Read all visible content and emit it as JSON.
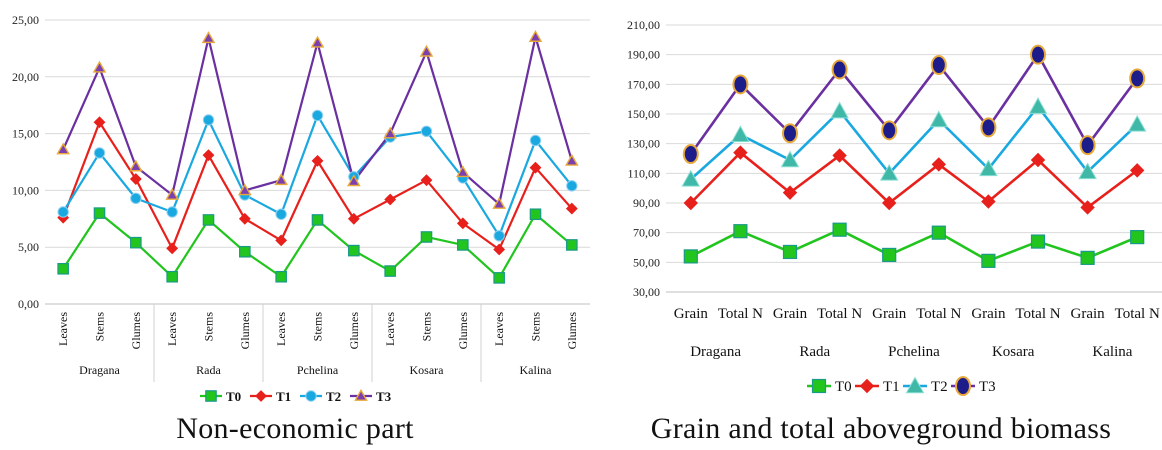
{
  "chart_data": [
    {
      "type": "line",
      "caption": "Non-economic part",
      "groups": [
        "Dragana",
        "Rada",
        "Pchelina",
        "Kosara",
        "Kalina"
      ],
      "categories": [
        "Leaves",
        "Stems",
        "Glumes",
        "Leaves",
        "Stems",
        "Glumes",
        "Leaves",
        "Stems",
        "Glumes",
        "Leaves",
        "Stems",
        "Glumes",
        "Leaves",
        "Stems",
        "Glumes"
      ],
      "ylim": [
        0,
        25
      ],
      "yticks": [
        "0,00",
        "5,00",
        "10,00",
        "15,00",
        "20,00",
        "25,00"
      ],
      "grid": true,
      "legend_position": "bottom",
      "series": [
        {
          "name": "T0",
          "color": "#22c41e",
          "marker": "square",
          "values": [
            3.1,
            8.0,
            5.4,
            2.4,
            7.4,
            4.6,
            2.4,
            7.4,
            4.7,
            2.9,
            5.9,
            5.2,
            2.3,
            7.9,
            5.2
          ]
        },
        {
          "name": "T1",
          "color": "#e8201c",
          "marker": "diamond",
          "values": [
            7.6,
            16.0,
            11.0,
            4.9,
            13.1,
            7.5,
            5.6,
            12.6,
            7.5,
            9.2,
            10.9,
            7.1,
            4.8,
            12.0,
            8.4
          ]
        },
        {
          "name": "T2",
          "color": "#1aa8e0",
          "marker": "circle",
          "values": [
            8.1,
            13.3,
            9.3,
            8.1,
            16.2,
            9.6,
            7.9,
            16.6,
            11.2,
            14.7,
            15.2,
            11.1,
            6.0,
            14.4,
            10.4
          ]
        },
        {
          "name": "T3",
          "color": "#6a2fa0",
          "marker": "triangle",
          "values": [
            13.6,
            20.8,
            12.1,
            9.6,
            23.4,
            10.0,
            10.9,
            23.0,
            10.8,
            15.0,
            22.2,
            11.6,
            8.8,
            23.5,
            12.6
          ]
        }
      ]
    },
    {
      "type": "line",
      "caption": "Grain and total aboveground biomass",
      "groups": [
        "Dragana",
        "Rada",
        "Pchelina",
        "Kosara",
        "Kalina"
      ],
      "categories": [
        "Grain",
        "Total N",
        "Grain",
        "Total N",
        "Grain",
        "Total N",
        "Grain",
        "Total N",
        "Grain",
        "Total N"
      ],
      "ylim": [
        30,
        210
      ],
      "yticks": [
        "30,00",
        "50,00",
        "70,00",
        "90,00",
        "110,00",
        "130,00",
        "150,00",
        "170,00",
        "190,00",
        "210,00"
      ],
      "grid": true,
      "legend_position": "bottom",
      "series": [
        {
          "name": "T0",
          "color": "#22c41e",
          "marker": "square",
          "values": [
            54,
            71,
            57,
            72,
            55,
            70,
            51,
            64,
            53,
            67
          ]
        },
        {
          "name": "T1",
          "color": "#e8201c",
          "marker": "diamond",
          "values": [
            90,
            124,
            97,
            122,
            90,
            116,
            91,
            119,
            87,
            112
          ]
        },
        {
          "name": "T2",
          "color": "#1aa8e0",
          "marker": "triangle-teal",
          "values": [
            106,
            136,
            119,
            152,
            110,
            146,
            113,
            155,
            111,
            143
          ]
        },
        {
          "name": "T3",
          "color": "#6a2fa0",
          "marker": "circle-navy",
          "values": [
            123,
            170,
            137,
            180,
            139,
            183,
            141,
            190,
            129,
            174
          ]
        }
      ]
    }
  ]
}
